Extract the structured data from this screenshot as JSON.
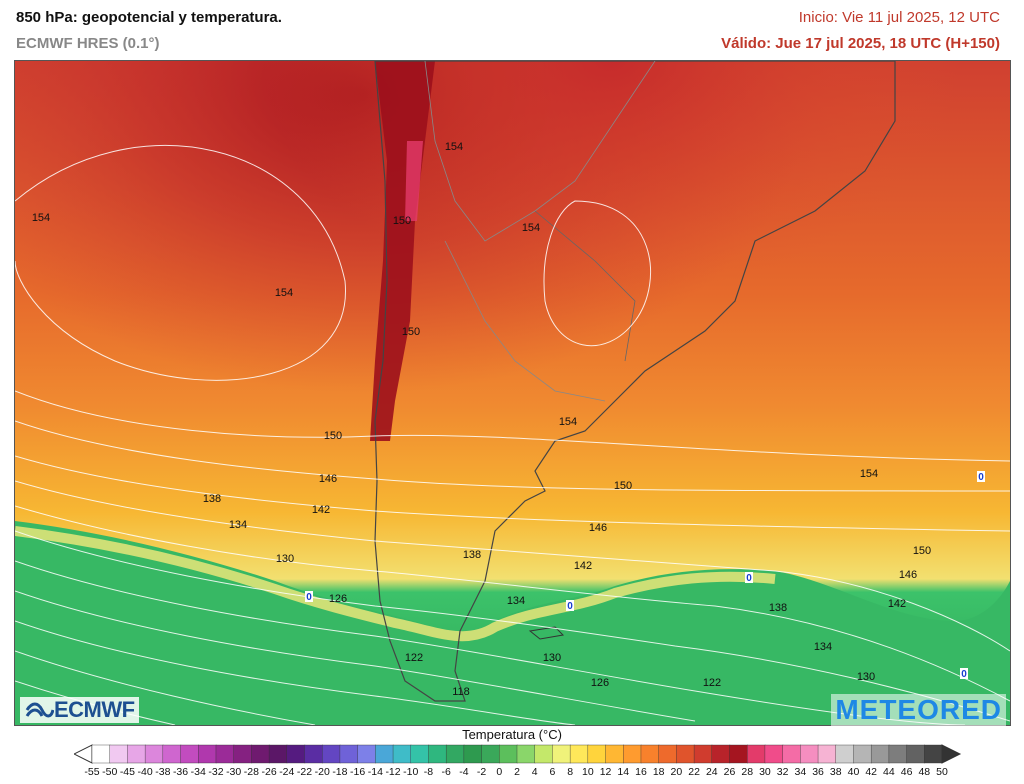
{
  "header": {
    "title": "850 hPa: geopotencial y temperatura.",
    "model": "ECMWF HRES (0.1°)",
    "init": "Inicio: Vie 11 jul 2025, 12 UTC",
    "valid": "Válido: Jue 17 jul 2025, 18 UTC (H+150)"
  },
  "map": {
    "isolines": [
      {
        "label": "154",
        "lx": 40,
        "ly": 216
      },
      {
        "label": "154",
        "lx": 283,
        "ly": 291
      },
      {
        "label": "154",
        "lx": 530,
        "ly": 226
      },
      {
        "label": "154",
        "lx": 453,
        "ly": 145
      },
      {
        "label": "150",
        "lx": 401,
        "ly": 219
      },
      {
        "label": "154",
        "lx": 567,
        "ly": 420
      },
      {
        "label": "154",
        "lx": 868,
        "ly": 472
      },
      {
        "label": "150",
        "lx": 332,
        "ly": 434
      },
      {
        "label": "146",
        "lx": 327,
        "ly": 477
      },
      {
        "label": "142",
        "lx": 320,
        "ly": 508
      },
      {
        "label": "138",
        "lx": 211,
        "ly": 497
      },
      {
        "label": "134",
        "lx": 237,
        "ly": 523
      },
      {
        "label": "130",
        "lx": 284,
        "ly": 557
      },
      {
        "label": "126",
        "lx": 337,
        "ly": 597
      },
      {
        "label": "150",
        "lx": 622,
        "ly": 484
      },
      {
        "label": "146",
        "lx": 597,
        "ly": 526
      },
      {
        "label": "142",
        "lx": 582,
        "ly": 564
      },
      {
        "label": "138",
        "lx": 471,
        "ly": 553
      },
      {
        "label": "134",
        "lx": 515,
        "ly": 599
      },
      {
        "label": "130",
        "lx": 551,
        "ly": 656
      },
      {
        "label": "126",
        "lx": 599,
        "ly": 681
      },
      {
        "label": "122",
        "lx": 711,
        "ly": 681
      },
      {
        "label": "122",
        "lx": 413,
        "ly": 656
      },
      {
        "label": "118",
        "lx": 460,
        "ly": 690
      },
      {
        "label": "150",
        "lx": 921,
        "ly": 549
      },
      {
        "label": "146",
        "lx": 907,
        "ly": 573
      },
      {
        "label": "142",
        "lx": 896,
        "ly": 602
      },
      {
        "label": "138",
        "lx": 777,
        "ly": 606
      },
      {
        "label": "134",
        "lx": 822,
        "ly": 645
      },
      {
        "label": "130",
        "lx": 865,
        "ly": 675
      },
      {
        "label": "150",
        "lx": 410,
        "ly": 330
      }
    ],
    "zero_markers": [
      {
        "label": "0",
        "lx": 308,
        "ly": 596
      },
      {
        "label": "0",
        "lx": 569,
        "ly": 605
      },
      {
        "label": "0",
        "lx": 748,
        "ly": 577
      },
      {
        "label": "0",
        "lx": 980,
        "ly": 476
      },
      {
        "label": "0",
        "lx": 963,
        "ly": 673
      }
    ]
  },
  "logos": {
    "left": "ECMWF",
    "right": "METEORED"
  },
  "colorbar": {
    "title": "Temperatura (°C)",
    "ticks": [
      "-55",
      "-50",
      "-45",
      "-40",
      "-38",
      "-36",
      "-34",
      "-32",
      "-30",
      "-28",
      "-26",
      "-24",
      "-22",
      "-20",
      "-18",
      "-16",
      "-14",
      "-12",
      "-10",
      "-8",
      "-6",
      "-4",
      "-2",
      "0",
      "2",
      "4",
      "6",
      "8",
      "10",
      "12",
      "14",
      "16",
      "18",
      "20",
      "22",
      "24",
      "26",
      "28",
      "30",
      "32",
      "34",
      "36",
      "38",
      "40",
      "42",
      "44",
      "46",
      "48",
      "50"
    ],
    "colors": [
      "#ffffff",
      "#f1c9f1",
      "#e7a6e7",
      "#dc86dc",
      "#cf66cf",
      "#c24cbf",
      "#b038ad",
      "#9b2b98",
      "#852181",
      "#6f1a6f",
      "#5b1767",
      "#551b80",
      "#5a2da3",
      "#6346c2",
      "#6f62d8",
      "#7d80e8",
      "#4aa7d8",
      "#3fbcc8",
      "#34c3a8",
      "#2fb77f",
      "#32a862",
      "#2e9a4f",
      "#3aa85a",
      "#5cbf5c",
      "#8ad66a",
      "#c4e86a",
      "#f0f27a",
      "#ffe85a",
      "#ffd43c",
      "#ffb733",
      "#ff9b2f",
      "#f8812c",
      "#ee6a2c",
      "#e0542c",
      "#d03c2e",
      "#b8232a",
      "#a51520",
      "#e33b6a",
      "#f04c8a",
      "#f46ca6",
      "#f58ec0",
      "#f6b3d3",
      "#cfcfcf",
      "#b5b5b5",
      "#999999",
      "#7d7d7d",
      "#626262",
      "#444444"
    ]
  }
}
